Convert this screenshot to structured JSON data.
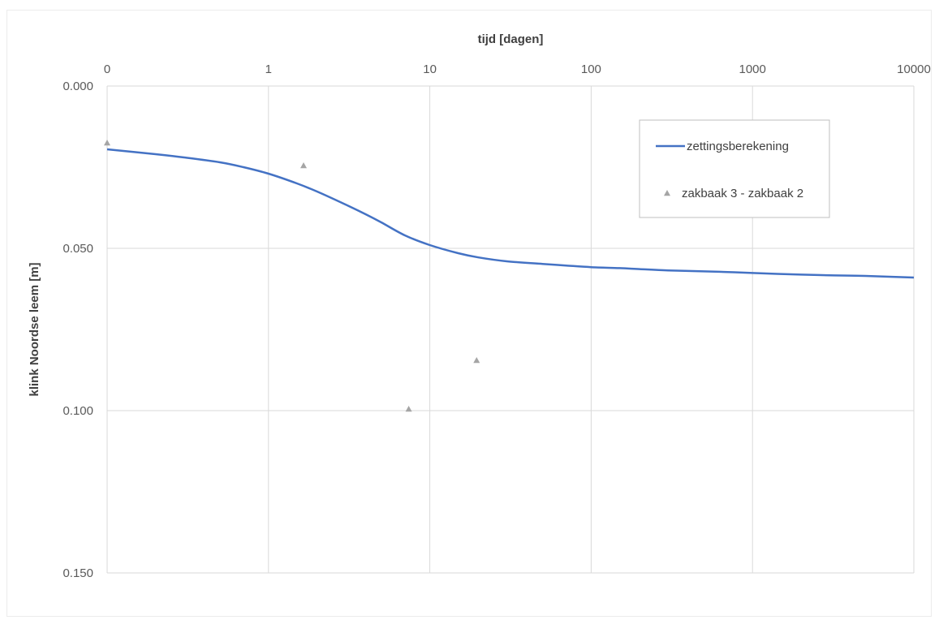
{
  "chart_data": {
    "type": "line",
    "xlabel": "tijd [dagen]",
    "ylabel": "klink Noordse leem [m]",
    "x_scale": "log",
    "x_axis_position": "top",
    "y_inverted": true,
    "x_ticks": [
      0.1,
      1,
      10,
      100,
      1000,
      10000
    ],
    "x_tick_labels": [
      "0",
      "1",
      "10",
      "100",
      "1000",
      "10000"
    ],
    "y_ticks": [
      0.0,
      0.05,
      0.1,
      0.15
    ],
    "y_tick_labels": [
      "0.000",
      "0.050",
      "0.100",
      "0.150"
    ],
    "xlim": [
      0.1,
      10000
    ],
    "ylim": [
      0.0,
      0.15
    ],
    "grid": true,
    "legend_position": "top-right",
    "colors": {
      "line": "#4472c4",
      "marker": "#a5a5a5",
      "grid": "#d9d9d9"
    },
    "series": [
      {
        "name": "zettingsberekening",
        "kind": "line",
        "x": [
          0.1,
          0.2,
          0.3,
          0.5,
          0.7,
          1,
          1.5,
          2,
          3,
          4,
          5,
          7,
          10,
          15,
          20,
          30,
          50,
          70,
          100,
          150,
          200,
          300,
          500,
          700,
          1000,
          2000,
          3000,
          5000,
          10000
        ],
        "y": [
          0.0195,
          0.021,
          0.022,
          0.0235,
          0.025,
          0.027,
          0.03,
          0.0325,
          0.0365,
          0.0395,
          0.042,
          0.046,
          0.049,
          0.0515,
          0.0528,
          0.054,
          0.0548,
          0.0553,
          0.0558,
          0.0561,
          0.0564,
          0.0568,
          0.0571,
          0.0573,
          0.0576,
          0.0581,
          0.0583,
          0.0585,
          0.059
        ]
      },
      {
        "name": "zakbaak 3 - zakbaak 2",
        "kind": "scatter",
        "marker": "triangle",
        "x": [
          0.1,
          1.65,
          7.4,
          19.5
        ],
        "y": [
          0.0175,
          0.0245,
          0.0995,
          0.0845
        ]
      }
    ]
  }
}
